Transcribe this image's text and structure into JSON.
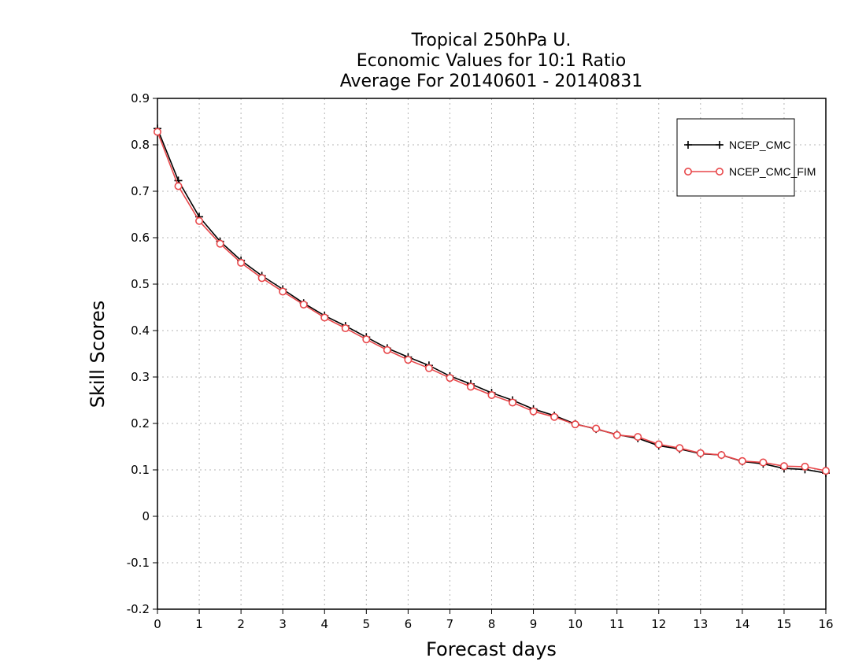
{
  "chart_data": {
    "type": "line",
    "title_lines": [
      "Tropical 250hPa U.",
      "Economic Values for 10:1 Ratio",
      "Average For 20140601 - 20140831"
    ],
    "xlabel": "Forecast days",
    "ylabel": "Skill Scores",
    "xlim": [
      0,
      16
    ],
    "ylim": [
      -0.2,
      0.9
    ],
    "xticks": [
      "0",
      "1",
      "2",
      "3",
      "4",
      "5",
      "6",
      "7",
      "8",
      "9",
      "10",
      "11",
      "12",
      "13",
      "14",
      "15",
      "16"
    ],
    "yticks": [
      "0.9",
      "0.8",
      "0.7",
      "0.6",
      "0.5",
      "0.4",
      "0.3",
      "0.2",
      "0.1",
      "0",
      "-0.1",
      "-0.2"
    ],
    "grid": true,
    "legend_position": "top-right",
    "x": [
      0,
      0.5,
      1,
      1.5,
      2,
      2.5,
      3,
      3.5,
      4,
      4.5,
      5,
      5.5,
      6,
      6.5,
      7,
      7.5,
      8,
      8.5,
      9,
      9.5,
      10,
      10.5,
      11,
      11.5,
      12,
      12.5,
      13,
      13.5,
      14,
      14.5,
      15,
      15.5,
      16
    ],
    "series": [
      {
        "name": "NCEP_CMC",
        "color": "#000000",
        "marker": "plus",
        "values": [
          0.835,
          0.723,
          0.645,
          0.592,
          0.551,
          0.518,
          0.489,
          0.459,
          0.432,
          0.41,
          0.386,
          0.362,
          0.343,
          0.325,
          0.302,
          0.285,
          0.266,
          0.25,
          0.231,
          0.217,
          0.199,
          0.188,
          0.176,
          0.168,
          0.152,
          0.145,
          0.135,
          0.132,
          0.118,
          0.113,
          0.103,
          0.101,
          0.093
        ]
      },
      {
        "name": "NCEP_CMC_FIM",
        "color": "#e8474a",
        "marker": "circle",
        "values": [
          0.828,
          0.711,
          0.636,
          0.587,
          0.546,
          0.513,
          0.484,
          0.456,
          0.428,
          0.405,
          0.381,
          0.358,
          0.337,
          0.319,
          0.298,
          0.279,
          0.261,
          0.245,
          0.226,
          0.214,
          0.198,
          0.189,
          0.175,
          0.171,
          0.155,
          0.147,
          0.136,
          0.132,
          0.119,
          0.116,
          0.108,
          0.107,
          0.098
        ]
      }
    ]
  }
}
